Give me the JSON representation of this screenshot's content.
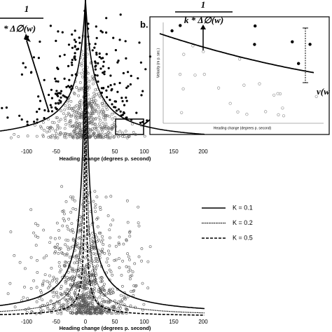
{
  "top_panel": {
    "formula_numerator": "1",
    "formula_denominator": "* Δ∅(w)",
    "xticks": [
      -100,
      -50,
      0,
      50,
      100,
      150,
      200
    ],
    "x_label": "Heading change (degrees p. second)"
  },
  "panel_b": {
    "label": "b.",
    "formula_numerator": "1",
    "formula_denominator": "k * Δ∅(w)",
    "curve_label": "v(w",
    "x_label": "Heading change (degrees p. second)",
    "y_label": "Velocity (m p. sec.)"
  },
  "bottom_panel": {
    "xticks": [
      -100,
      -50,
      0,
      50,
      100,
      150,
      200
    ],
    "x_label": "Heading change (degrees p. second)",
    "legend": [
      "K = 0.1",
      "K = 0.2",
      "K = 0.5"
    ]
  }
}
